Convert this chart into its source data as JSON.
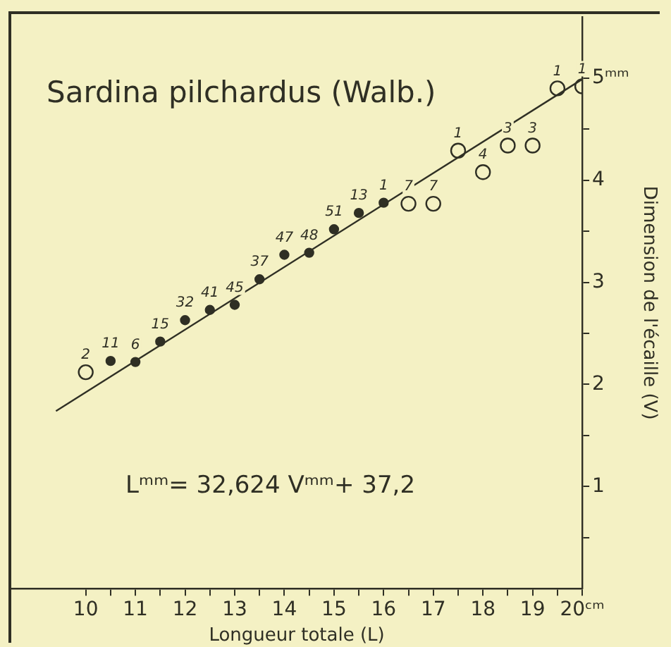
{
  "chart_data": {
    "type": "scatter",
    "title": "Sardina pilchardus (Walb.)",
    "xlabel": "Longueur totale (L)",
    "ylabel": "Dimension de l'écaille (V)",
    "series": [
      {
        "color": "#2f2f24",
        "marker": "circle",
        "x": [
          10.5,
          11,
          11.5,
          12,
          12.5,
          13,
          13.5,
          14,
          14.5,
          15,
          15.5,
          16
        ],
        "values": [
          2.23,
          2.22,
          2.42,
          2.63,
          2.73,
          2.78,
          3.03,
          3.27,
          3.29,
          3.52,
          3.68,
          3.78
        ]
      },
      {
        "color": "#2f2f24",
        "marker": "circle",
        "x": [
          10,
          16.5,
          17,
          17.5,
          18,
          18.5,
          19,
          19.5,
          20
        ],
        "values": [
          2.12,
          3.77,
          3.77,
          4.29,
          4.08,
          4.34,
          4.34,
          4.9,
          4.92
        ]
      },
      {
        "type": "line",
        "color": "#2f2f24",
        "x": [
          9.4,
          20
        ],
        "values": [
          1.74,
          4.99
        ]
      }
    ],
    "xlim": [
      8.5,
      20
    ],
    "ylim": [
      0,
      5.6
    ],
    "xticks": [
      10,
      {
        "value": 10.5,
        "label": null
      },
      11,
      {
        "value": 11.5,
        "label": null
      },
      12,
      {
        "value": 12.5,
        "label": null
      },
      13,
      {
        "value": 13.5,
        "label": null
      },
      14,
      {
        "value": 14.5,
        "label": null
      },
      15,
      {
        "value": 15.5,
        "label": null
      },
      16,
      {
        "value": 16.5,
        "label": null
      },
      17,
      {
        "value": 17.5,
        "label": null
      },
      18,
      {
        "value": 18.5,
        "label": null
      },
      19,
      {
        "value": 19.5,
        "label": null
      },
      {
        "value": 20,
        "label": "20ᶜᵐ"
      }
    ],
    "yticks": [
      {
        "value": 0.5,
        "label": null
      },
      1,
      {
        "value": 1.5,
        "label": null
      },
      2,
      {
        "value": 2.5,
        "label": null
      },
      3,
      {
        "value": 3.5,
        "label": null
      },
      4,
      {
        "value": 4.5,
        "label": null
      },
      {
        "value": 5,
        "label": "5ᵐᵐ"
      }
    ],
    "grid": false,
    "legend": false,
    "annotations": [
      "Lᵐᵐ= 32,624 Vᵐᵐ+ 37,2",
      {
        "text": "2",
        "x": 10,
        "y": 2.12
      },
      {
        "text": "11",
        "x": 10.5,
        "y": 2.23
      },
      {
        "text": "6",
        "x": 11,
        "y": 2.22
      },
      {
        "text": "15",
        "x": 11.5,
        "y": 2.42
      },
      {
        "text": "32",
        "x": 12,
        "y": 2.63
      },
      {
        "text": "41",
        "x": 12.5,
        "y": 2.73
      },
      {
        "text": "45",
        "x": 13,
        "y": 2.78
      },
      {
        "text": "37",
        "x": 13.5,
        "y": 3.03
      },
      {
        "text": "47",
        "x": 14,
        "y": 3.27
      },
      {
        "text": "48",
        "x": 14.5,
        "y": 3.29
      },
      {
        "text": "51",
        "x": 15,
        "y": 3.52
      },
      {
        "text": "13",
        "x": 15.5,
        "y": 3.68
      },
      {
        "text": "1",
        "x": 16,
        "y": 3.78
      },
      {
        "text": "7",
        "x": 16.5,
        "y": 3.77
      },
      {
        "text": "7",
        "x": 17,
        "y": 3.77
      },
      {
        "text": "1",
        "x": 17.5,
        "y": 4.29
      },
      {
        "text": "4",
        "x": 18,
        "y": 4.08
      },
      {
        "text": "3",
        "x": 18.5,
        "y": 4.34
      },
      {
        "text": "3",
        "x": 19,
        "y": 4.34
      },
      {
        "text": "1",
        "x": 19.5,
        "y": 4.9
      },
      {
        "text": "1",
        "x": 20,
        "y": 4.92
      }
    ]
  }
}
